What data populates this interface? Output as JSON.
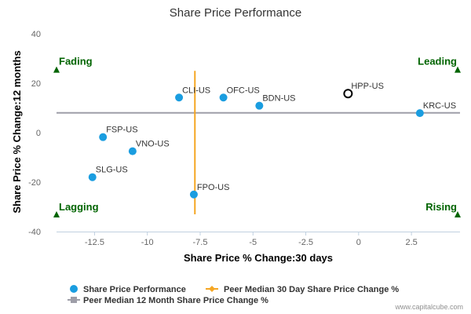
{
  "chart_data": {
    "type": "scatter",
    "title": "Share Price Performance",
    "xlabel": "Share Price % Change:30 days",
    "ylabel": "Share Price % Change:12 months",
    "xlim": [
      -14.3,
      4.8
    ],
    "ylim": [
      -40,
      40
    ],
    "x_ticks": [
      -12.5,
      -10,
      -7.5,
      -5,
      -2.5,
      0,
      2.5
    ],
    "x_tick_labels": [
      "-12.5",
      "-10",
      "-7.5",
      "-5",
      "-2.5",
      "0",
      "2.5"
    ],
    "y_ticks": [
      -40,
      -20,
      0,
      20,
      40
    ],
    "y_tick_labels": [
      "-40",
      "-20",
      "0",
      "20",
      "40"
    ],
    "grid": false,
    "points": [
      {
        "label": "CLI-US",
        "x": -8.5,
        "y": 14.2
      },
      {
        "label": "OFC-US",
        "x": -6.4,
        "y": 14.2
      },
      {
        "label": "BDN-US",
        "x": -4.7,
        "y": 10.9
      },
      {
        "label": "KRC-US",
        "x": 2.9,
        "y": 7.9
      },
      {
        "label": "FSP-US",
        "x": -12.1,
        "y": -1.8
      },
      {
        "label": "VNO-US",
        "x": -10.7,
        "y": -7.5
      },
      {
        "label": "SLG-US",
        "x": -12.6,
        "y": -18.0
      },
      {
        "label": "FPO-US",
        "x": -7.8,
        "y": -25.0
      }
    ],
    "highlight": {
      "label": "HPP-US",
      "x": -0.5,
      "y": 15.8
    },
    "peer_median_30d": -7.75,
    "peer_median_30d_y_range": [
      -33,
      25
    ],
    "peer_median_12m": 8.0,
    "quadrants": {
      "top_left": "Fading",
      "top_right": "Leading",
      "bottom_left": "Lagging",
      "bottom_right": "Rising"
    },
    "quadrant_marker_y": {
      "top": 25.5,
      "bottom": -33
    },
    "legend": [
      {
        "name": "Share Price Performance",
        "type": "point",
        "color": "#1a9de0"
      },
      {
        "name": "Peer Median 30 Day Share Price Change %",
        "type": "line",
        "color": "#f5a623"
      },
      {
        "name": "Peer Median 12 Month Share Price Change %",
        "type": "line",
        "color": "#9e9ea8"
      }
    ],
    "legend_position": "bottom-left",
    "colors": {
      "point": "#1a9de0",
      "highlight_stroke": "#000000",
      "median_30d": "#f5a623",
      "median_12m": "#9e9ea8",
      "quadrant": "#006400",
      "axis": "#c0d0e0"
    }
  },
  "credit": "www.capitalcube.com"
}
